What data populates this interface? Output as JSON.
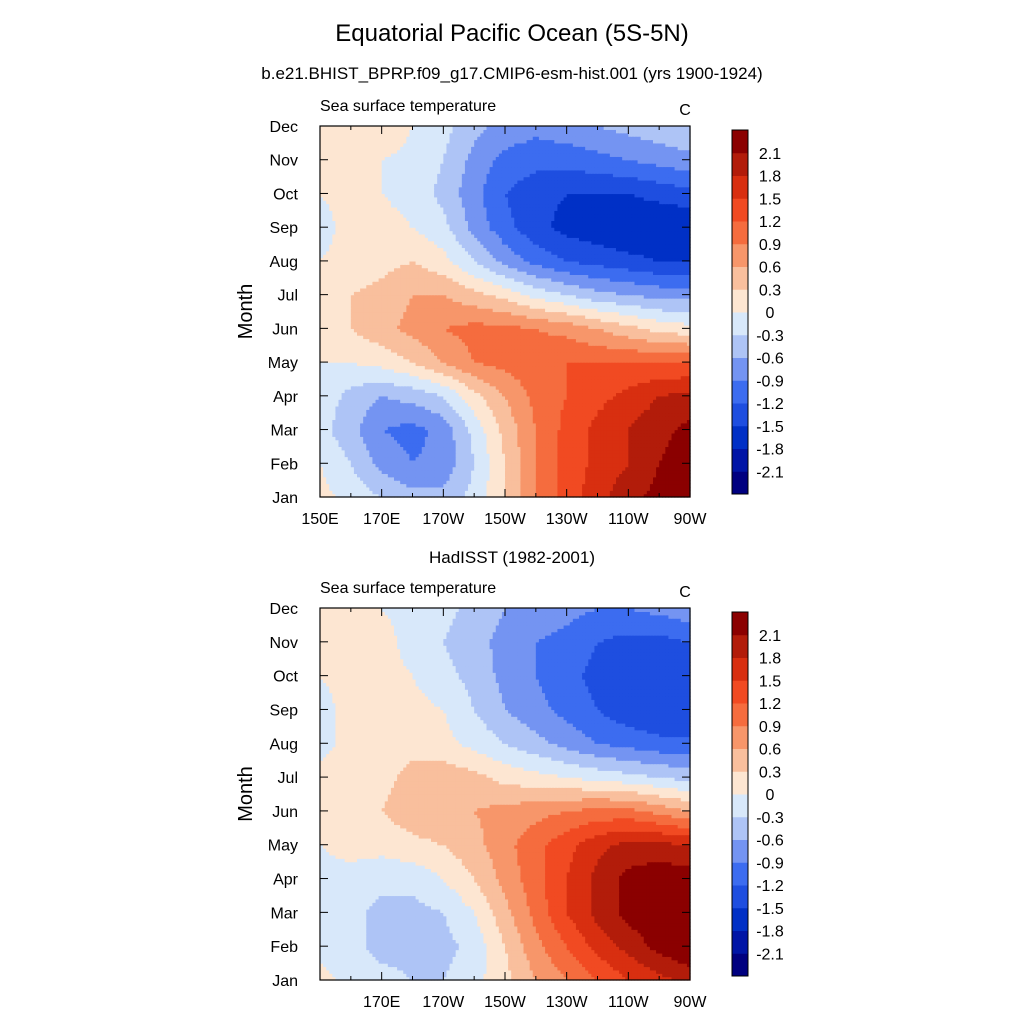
{
  "figure": {
    "title": "Equatorial Pacific Ocean (5S-5N)",
    "case_subtitle": "b.e21.BHIST_BPRP.f09_g17.CMIP6-esm-hist.001 (yrs 1900-1924)",
    "obs_subtitle": "HadISST (1982-2001)"
  },
  "colors": {
    "levels": [
      -2.4,
      -2.1,
      -1.8,
      -1.5,
      -1.2,
      -0.9,
      -0.6,
      -0.3,
      0,
      0.3,
      0.6,
      0.9,
      1.2,
      1.5,
      1.8,
      2.1,
      2.4
    ],
    "fills": [
      "#000080",
      "#0015a6",
      "#0030c6",
      "#1e4ee0",
      "#3c6cf0",
      "#7494f2",
      "#aec4f6",
      "#d8e8fa",
      "#fde6d2",
      "#f9bf9d",
      "#f7966a",
      "#f56c3e",
      "#f14a22",
      "#d82f10",
      "#b21c0a",
      "#8b0000"
    ]
  },
  "chart_data": [
    {
      "type": "heatmap",
      "panel": "model",
      "subtitle_left": "Sea surface temperature",
      "subtitle_right": "C",
      "ylabel": "Month",
      "x": [
        150,
        160,
        170,
        180,
        190,
        200,
        210,
        220,
        230,
        240,
        250,
        260,
        270
      ],
      "x_units": "longitude_degrees_east",
      "xtick_values": [
        150,
        170,
        190,
        210,
        230,
        250,
        270
      ],
      "xtick_labels": [
        "150E",
        "170E",
        "170W",
        "150W",
        "130W",
        "110W",
        "90W"
      ],
      "y": [
        "Jan",
        "Feb",
        "Mar",
        "Apr",
        "May",
        "Jun",
        "Jul",
        "Aug",
        "Sep",
        "Oct",
        "Nov",
        "Dec"
      ],
      "colorbar_labels": [
        "2.1",
        "1.8",
        "1.5",
        "1.2",
        "0.9",
        "0.6",
        "0.3",
        "0",
        "-0.3",
        "-0.6",
        "-0.9",
        "-1.2",
        "-1.5",
        "-1.8",
        "-2.1"
      ],
      "z": [
        [
          0.1,
          -0.1,
          -0.3,
          -0.5,
          -0.5,
          -0.2,
          0.3,
          0.9,
          1.3,
          1.7,
          2.0,
          2.2,
          2.4
        ],
        [
          0.0,
          -0.3,
          -0.7,
          -0.9,
          -0.8,
          -0.3,
          0.3,
          0.9,
          1.3,
          1.6,
          1.8,
          2.1,
          2.3
        ],
        [
          -0.2,
          -0.5,
          -0.9,
          -1.0,
          -0.8,
          -0.2,
          0.4,
          0.9,
          1.3,
          1.6,
          1.8,
          2.0,
          2.2
        ],
        [
          -0.1,
          -0.4,
          -0.6,
          -0.5,
          -0.3,
          0.2,
          0.6,
          1.0,
          1.2,
          1.4,
          1.6,
          1.8,
          1.9
        ],
        [
          0.0,
          0.0,
          0.1,
          0.3,
          0.6,
          0.9,
          1.0,
          1.1,
          1.2,
          1.2,
          1.2,
          1.2,
          1.2
        ],
        [
          0.2,
          0.3,
          0.5,
          0.7,
          0.9,
          1.0,
          1.0,
          0.9,
          0.8,
          0.6,
          0.4,
          0.2,
          0.1
        ],
        [
          0.1,
          0.3,
          0.4,
          0.6,
          0.6,
          0.4,
          0.2,
          -0.1,
          -0.3,
          -0.5,
          -0.6,
          -0.7,
          -0.7
        ],
        [
          0.0,
          0.1,
          0.2,
          0.3,
          0.1,
          -0.3,
          -0.7,
          -1.0,
          -1.2,
          -1.3,
          -1.4,
          -1.5,
          -1.5
        ],
        [
          -0.1,
          0.1,
          0.1,
          0.0,
          -0.2,
          -0.7,
          -1.1,
          -1.4,
          -1.6,
          -1.7,
          -1.8,
          -1.8,
          -1.8
        ],
        [
          0.0,
          0.1,
          0.0,
          -0.1,
          -0.4,
          -0.8,
          -1.2,
          -1.4,
          -1.5,
          -1.5,
          -1.5,
          -1.4,
          -1.3
        ],
        [
          0.0,
          0.1,
          0.0,
          -0.1,
          -0.3,
          -0.7,
          -1.0,
          -1.1,
          -1.1,
          -1.0,
          -0.9,
          -0.8,
          -0.7
        ],
        [
          0.1,
          0.2,
          0.3,
          0.0,
          -0.2,
          -0.5,
          -0.7,
          -0.8,
          -0.7,
          -0.6,
          -0.5,
          -0.4,
          -0.3
        ]
      ]
    },
    {
      "type": "heatmap",
      "panel": "obs",
      "subtitle_left": "Sea surface temperature",
      "subtitle_right": "C",
      "ylabel": "Month",
      "x": [
        150,
        160,
        170,
        180,
        190,
        200,
        210,
        220,
        230,
        240,
        250,
        260,
        270
      ],
      "x_units": "longitude_degrees_east",
      "xtick_values": [
        170,
        190,
        210,
        230,
        250,
        270
      ],
      "xtick_labels": [
        "170E",
        "170W",
        "150W",
        "130W",
        "110W",
        "90W"
      ],
      "y": [
        "Jan",
        "Feb",
        "Mar",
        "Apr",
        "May",
        "Jun",
        "Jul",
        "Aug",
        "Sep",
        "Oct",
        "Nov",
        "Dec"
      ],
      "colorbar_labels": [
        "2.1",
        "1.8",
        "1.5",
        "1.2",
        "0.9",
        "0.6",
        "0.3",
        "0",
        "-0.3",
        "-0.6",
        "-0.9",
        "-1.2",
        "-1.5",
        "-1.8",
        "-2.1"
      ],
      "z": [
        [
          0.1,
          -0.1,
          -0.2,
          -0.3,
          -0.3,
          -0.1,
          0.2,
          0.6,
          0.9,
          1.2,
          1.5,
          1.7,
          1.9
        ],
        [
          -0.1,
          -0.2,
          -0.4,
          -0.4,
          -0.4,
          -0.2,
          0.3,
          0.8,
          1.2,
          1.6,
          1.9,
          2.2,
          2.4
        ],
        [
          -0.1,
          -0.2,
          -0.4,
          -0.4,
          -0.3,
          0.0,
          0.5,
          1.0,
          1.5,
          1.9,
          2.2,
          2.4,
          2.5
        ],
        [
          -0.1,
          -0.1,
          -0.2,
          -0.2,
          0.0,
          0.3,
          0.7,
          1.1,
          1.5,
          1.9,
          2.2,
          2.3,
          2.3
        ],
        [
          0.0,
          0.1,
          0.1,
          0.2,
          0.3,
          0.5,
          0.8,
          1.1,
          1.4,
          1.7,
          1.9,
          1.9,
          1.8
        ],
        [
          0.1,
          0.2,
          0.3,
          0.5,
          0.6,
          0.6,
          0.7,
          0.8,
          0.9,
          1.0,
          1.0,
          0.8,
          0.6
        ],
        [
          0.1,
          0.1,
          0.2,
          0.4,
          0.5,
          0.4,
          0.2,
          0.1,
          0.0,
          -0.1,
          -0.2,
          -0.3,
          -0.4
        ],
        [
          -0.1,
          0.1,
          0.1,
          0.2,
          0.1,
          -0.1,
          -0.3,
          -0.5,
          -0.7,
          -0.9,
          -1.0,
          -1.1,
          -1.1
        ],
        [
          -0.1,
          0.1,
          0.3,
          0.1,
          0.0,
          -0.3,
          -0.6,
          -0.8,
          -1.0,
          -1.2,
          -1.4,
          -1.5,
          -1.5
        ],
        [
          0.0,
          0.1,
          0.1,
          0.0,
          -0.2,
          -0.4,
          -0.7,
          -0.9,
          -1.1,
          -1.3,
          -1.4,
          -1.5,
          -1.4
        ],
        [
          0.0,
          0.1,
          0.1,
          -0.1,
          -0.3,
          -0.5,
          -0.7,
          -0.9,
          -1.0,
          -1.2,
          -1.3,
          -1.3,
          -1.2
        ],
        [
          0.1,
          0.1,
          0.0,
          -0.1,
          -0.2,
          -0.4,
          -0.6,
          -0.7,
          -0.8,
          -0.9,
          -0.9,
          -0.8,
          -0.7
        ]
      ]
    }
  ]
}
